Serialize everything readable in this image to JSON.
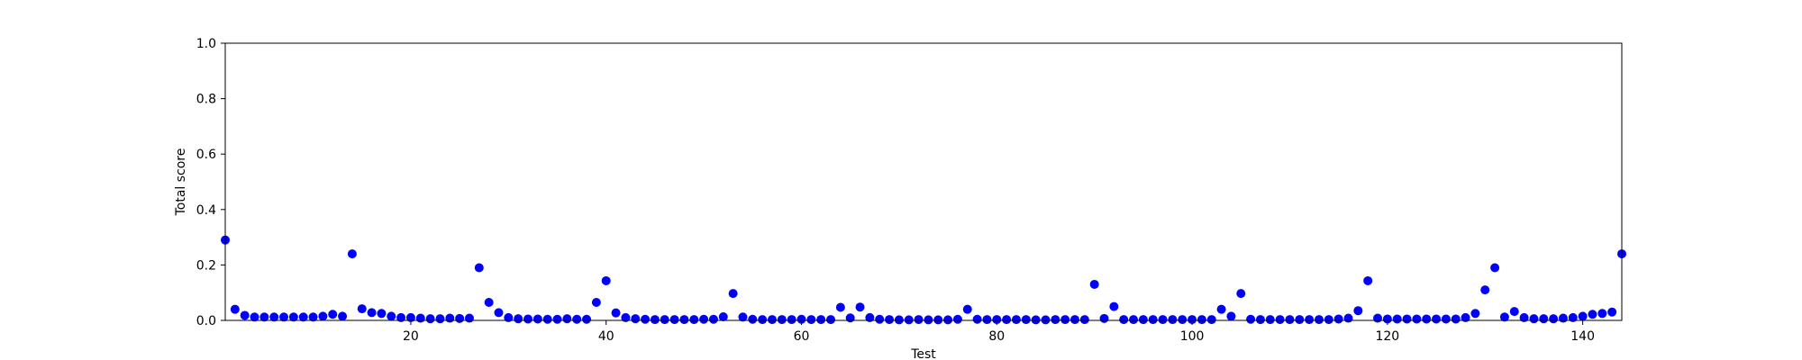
{
  "chart_data": {
    "type": "scatter",
    "title": "",
    "xlabel": "Test",
    "ylabel": "Total score",
    "xlim": [
      1,
      144
    ],
    "ylim": [
      0,
      1.0
    ],
    "xticks": [
      20,
      40,
      60,
      80,
      100,
      120,
      140
    ],
    "xtick_labels": [
      "20",
      "40",
      "60",
      "80",
      "100",
      "120",
      "140"
    ],
    "yticks": [
      0.0,
      0.2,
      0.4,
      0.6,
      0.8,
      1.0
    ],
    "ytick_labels": [
      "0.0",
      "0.2",
      "0.4",
      "0.6",
      "0.8",
      "1.0"
    ],
    "grid": false,
    "marker_color": "#0000ff",
    "series": [
      {
        "x": [
          1,
          2,
          3,
          4,
          5,
          6,
          7,
          8,
          9,
          10,
          11,
          12,
          13,
          14,
          15,
          16,
          17,
          18,
          19,
          20,
          21,
          22,
          23,
          24,
          25,
          26,
          27,
          28,
          29,
          30,
          31,
          32,
          33,
          34,
          35,
          36,
          37,
          38,
          39,
          40,
          41,
          42,
          43,
          44,
          45,
          46,
          47,
          48,
          49,
          50,
          51,
          52,
          53,
          54,
          55,
          56,
          57,
          58,
          59,
          60,
          61,
          62,
          63,
          64,
          65,
          66,
          67,
          68,
          69,
          70,
          71,
          72,
          73,
          74,
          75,
          76,
          77,
          78,
          79,
          80,
          81,
          82,
          83,
          84,
          85,
          86,
          87,
          88,
          89,
          90,
          91,
          92,
          93,
          94,
          95,
          96,
          97,
          98,
          99,
          100,
          101,
          102,
          103,
          104,
          105,
          106,
          107,
          108,
          109,
          110,
          111,
          112,
          113,
          114,
          115,
          116,
          117,
          118,
          119,
          120,
          121,
          122,
          123,
          124,
          125,
          126,
          127,
          128,
          129,
          130,
          131,
          132,
          133,
          134,
          135,
          136,
          137,
          138,
          139,
          140,
          141,
          142,
          143,
          144
        ],
        "y": [
          0.29,
          0.04,
          0.018,
          0.012,
          0.012,
          0.012,
          0.012,
          0.012,
          0.012,
          0.012,
          0.015,
          0.022,
          0.015,
          0.24,
          0.042,
          0.028,
          0.025,
          0.015,
          0.01,
          0.01,
          0.008,
          0.006,
          0.006,
          0.008,
          0.007,
          0.008,
          0.19,
          0.065,
          0.028,
          0.01,
          0.006,
          0.005,
          0.005,
          0.004,
          0.004,
          0.006,
          0.004,
          0.004,
          0.065,
          0.143,
          0.027,
          0.01,
          0.006,
          0.004,
          0.003,
          0.003,
          0.003,
          0.003,
          0.003,
          0.004,
          0.004,
          0.013,
          0.097,
          0.012,
          0.004,
          0.003,
          0.003,
          0.003,
          0.003,
          0.004,
          0.003,
          0.003,
          0.003,
          0.047,
          0.009,
          0.048,
          0.01,
          0.004,
          0.003,
          0.002,
          0.002,
          0.003,
          0.002,
          0.002,
          0.002,
          0.004,
          0.04,
          0.004,
          0.003,
          0.003,
          0.003,
          0.003,
          0.003,
          0.002,
          0.002,
          0.003,
          0.003,
          0.003,
          0.003,
          0.13,
          0.007,
          0.05,
          0.003,
          0.003,
          0.003,
          0.003,
          0.003,
          0.003,
          0.003,
          0.003,
          0.003,
          0.003,
          0.04,
          0.015,
          0.097,
          0.004,
          0.003,
          0.003,
          0.003,
          0.003,
          0.003,
          0.003,
          0.003,
          0.003,
          0.005,
          0.008,
          0.035,
          0.143,
          0.008,
          0.005,
          0.005,
          0.005,
          0.005,
          0.005,
          0.005,
          0.005,
          0.005,
          0.01,
          0.025,
          0.11,
          0.19,
          0.012,
          0.032,
          0.01,
          0.006,
          0.006,
          0.006,
          0.008,
          0.01,
          0.015,
          0.022,
          0.025,
          0.03,
          0.24
        ]
      }
    ]
  }
}
